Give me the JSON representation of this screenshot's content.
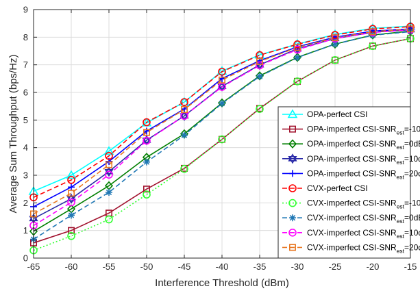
{
  "chart_data": {
    "type": "line",
    "xlabel": "Interference Threshold (dBm)",
    "ylabel": "Average Sum Throughput (bps/Hz)",
    "x": [
      -65,
      -60,
      -55,
      -50,
      -45,
      -40,
      -35,
      -30,
      -25,
      -20,
      -15
    ],
    "xlim": [
      -65,
      -15
    ],
    "ylim": [
      0,
      9
    ],
    "xticks": [
      "-65",
      "-60",
      "-55",
      "-50",
      "-45",
      "-40",
      "-35",
      "-30",
      "-25",
      "-20",
      "-15"
    ],
    "yticks": [
      "0",
      "1",
      "2",
      "3",
      "4",
      "5",
      "6",
      "7",
      "8",
      "9"
    ],
    "grid": true,
    "legend_placement": "bottom-right",
    "series": [
      {
        "name": "OPA-perfect CSI",
        "label_main": "OPA-perfect CSI",
        "label_sub": "",
        "label_tail": "",
        "color": "#00ffff",
        "dash": "solid",
        "marker": "triangle",
        "values": [
          2.42,
          3.0,
          3.87,
          4.9,
          5.65,
          6.77,
          7.36,
          7.75,
          8.1,
          8.32,
          8.4
        ]
      },
      {
        "name": "OPA-imperfect CSI-SNRest=-10dB",
        "label_main": "OPA-imperfect CSI-SNR",
        "label_sub": "est",
        "label_tail": "=-10dB",
        "color": "#a2142f",
        "dash": "solid",
        "marker": "square",
        "values": [
          0.55,
          1.0,
          1.63,
          2.5,
          3.25,
          4.3,
          5.42,
          6.4,
          7.17,
          7.68,
          7.95
        ]
      },
      {
        "name": "OPA-imperfect CSI-SNRest=0dB",
        "label_main": "OPA-imperfect CSI-SNR",
        "label_sub": "est",
        "label_tail": "=0dB",
        "color": "#007f00",
        "dash": "solid",
        "marker": "diamond",
        "values": [
          0.97,
          1.78,
          2.62,
          3.65,
          4.5,
          5.62,
          6.6,
          7.27,
          7.75,
          8.08,
          8.22
        ]
      },
      {
        "name": "OPA-imperfect CSI-SNRest=10dB",
        "label_main": "OPA-imperfect CSI-SNR",
        "label_sub": "est",
        "label_tail": "=10dB",
        "color": "#2a2aa8",
        "dash": "solid",
        "marker": "hexagram",
        "values": [
          1.43,
          2.15,
          3.13,
          4.27,
          5.15,
          6.22,
          7.0,
          7.58,
          7.95,
          8.18,
          8.27
        ]
      },
      {
        "name": "OPA-imperfect CSI-SNRest=20dB",
        "label_main": "OPA-imperfect CSI-SNR",
        "label_sub": "est",
        "label_tail": "=20dB",
        "color": "#0000ff",
        "dash": "solid",
        "marker": "plus",
        "values": [
          1.86,
          2.57,
          3.5,
          4.6,
          5.4,
          6.5,
          7.15,
          7.65,
          8.0,
          8.22,
          8.3
        ]
      },
      {
        "name": "CVX-perfect CSI",
        "label_main": "CVX-perfect CSI",
        "label_sub": "",
        "label_tail": "",
        "color": "#ff0000",
        "dash": "dashed",
        "marker": "circle",
        "values": [
          2.2,
          2.83,
          3.7,
          4.92,
          5.65,
          6.75,
          7.35,
          7.74,
          8.08,
          8.3,
          8.38
        ]
      },
      {
        "name": "CVX-imperfect CSI-SNRest=-10dB",
        "label_main": "CVX-imperfect CSI-SNR",
        "label_sub": "est",
        "label_tail": "=-10dB",
        "color": "#33ff33",
        "dash": "dotted",
        "marker": "circle",
        "values": [
          0.28,
          0.8,
          1.4,
          2.3,
          3.23,
          4.3,
          5.4,
          6.4,
          7.17,
          7.68,
          7.95
        ]
      },
      {
        "name": "CVX-imperfect CSI-SNRest=0dB",
        "label_main": "CVX-imperfect CSI-SNR",
        "label_sub": "est",
        "label_tail": "=0dB",
        "color": "#1f77b4",
        "dash": "dashed",
        "marker": "asterisk",
        "values": [
          0.68,
          1.55,
          2.38,
          3.48,
          4.45,
          5.6,
          6.58,
          7.26,
          7.75,
          8.07,
          8.2
        ]
      },
      {
        "name": "CVX-imperfect CSI-SNRest=10dB",
        "label_main": "CVX-imperfect CSI-SNR",
        "label_sub": "est",
        "label_tail": "=10dB",
        "color": "#ff00ff",
        "dash": "dashed",
        "marker": "circle",
        "values": [
          1.18,
          2.02,
          3.02,
          4.25,
          5.15,
          6.2,
          6.98,
          7.55,
          7.95,
          8.17,
          8.27
        ]
      },
      {
        "name": "CVX-imperfect CSI-SNRest=20dB",
        "label_main": "CVX-imperfect CSI-SNR",
        "label_sub": "est",
        "label_tail": "=20dB",
        "color": "#e87722",
        "dash": "dashed",
        "marker": "square",
        "values": [
          1.6,
          2.35,
          3.38,
          4.55,
          5.38,
          6.45,
          7.12,
          7.63,
          7.98,
          8.2,
          8.3
        ]
      }
    ]
  }
}
